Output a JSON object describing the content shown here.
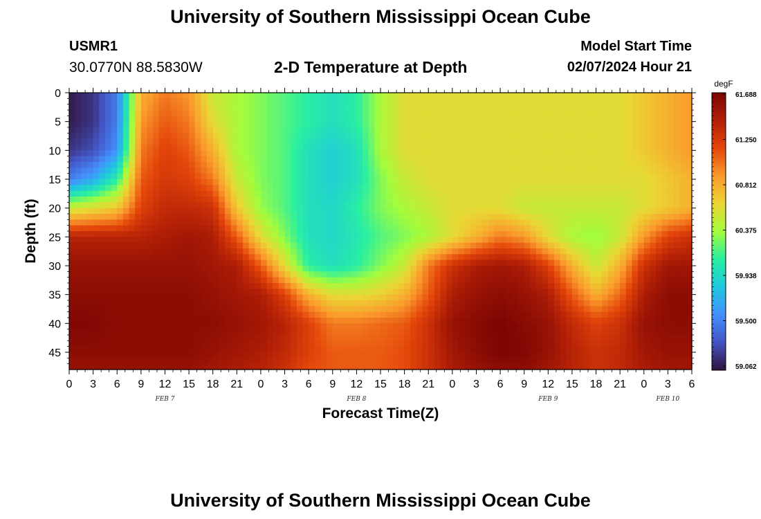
{
  "header": {
    "title": "University of Southern Mississippi Ocean Cube",
    "station_id": "USMR1",
    "station_coords": "30.0770N  88.5830W",
    "subtitle": "2-D Temperature at Depth",
    "model_start_label": "Model Start Time",
    "model_start_value": "02/07/2024 Hour 21"
  },
  "footer": {
    "title": "University of Southern Mississippi Ocean Cube"
  },
  "chart_data": {
    "type": "heatmap",
    "title": "2-D Temperature at Depth",
    "xlabel": "Forecast Time(Z)",
    "ylabel": "Depth (ft)",
    "y_axis_inverted": true,
    "ylim": [
      0,
      48
    ],
    "xlim_hours": [
      0,
      78
    ],
    "x_start": "FEB 7 00Z",
    "x_tick_labels": [
      "0",
      "3",
      "6",
      "9",
      "12",
      "15",
      "18",
      "21",
      "0",
      "3",
      "6",
      "9",
      "12",
      "15",
      "18",
      "21",
      "0",
      "3",
      "6",
      "9",
      "12",
      "15",
      "18",
      "21",
      "0",
      "3",
      "6"
    ],
    "y_tick_labels": [
      "0",
      "5",
      "10",
      "15",
      "20",
      "25",
      "30",
      "35",
      "40",
      "45"
    ],
    "date_labels": [
      {
        "label": "FEB 7",
        "hour": 12
      },
      {
        "label": "FEB 8",
        "hour": 36
      },
      {
        "label": "FEB 9",
        "hour": 60
      },
      {
        "label": "FEB 10",
        "hour": 75
      }
    ],
    "colorbar": {
      "unit": "degF",
      "min": 59.062,
      "max": 61.688,
      "tick_labels": [
        "61.688",
        "61.250",
        "60.812",
        "60.375",
        "59.938",
        "59.500",
        "59.062"
      ],
      "colors": [
        "#30123b",
        "#4454c4",
        "#4490fe",
        "#1fc8de",
        "#29efa2",
        "#a4fc3c",
        "#ebd634",
        "#fa9a2c",
        "#e4460a",
        "#b11f06",
        "#7a0403"
      ]
    },
    "grid_hours": [
      0,
      3,
      6,
      9,
      12,
      15,
      18,
      21,
      24,
      27,
      30,
      33,
      36,
      39,
      42,
      45,
      48,
      51,
      54,
      57,
      60,
      63,
      66,
      69,
      72,
      75,
      78
    ],
    "grid_depths": [
      0,
      5,
      10,
      15,
      20,
      25,
      30,
      35,
      40,
      45,
      48
    ],
    "values_degF": [
      [
        59.1,
        59.2,
        59.5,
        60.8,
        61.0,
        60.9,
        60.5,
        60.4,
        60.3,
        60.2,
        60.1,
        60.0,
        60.1,
        60.4,
        60.6,
        60.6,
        60.6,
        60.6,
        60.6,
        60.6,
        60.6,
        60.6,
        60.6,
        60.6,
        60.7,
        60.8,
        60.9
      ],
      [
        59.1,
        59.2,
        59.5,
        60.9,
        61.1,
        61.0,
        60.6,
        60.4,
        60.3,
        60.2,
        60.1,
        60.0,
        60.1,
        60.4,
        60.6,
        60.6,
        60.6,
        60.6,
        60.6,
        60.6,
        60.6,
        60.6,
        60.6,
        60.6,
        60.7,
        60.8,
        60.9
      ],
      [
        59.2,
        59.3,
        59.6,
        61.0,
        61.2,
        61.1,
        60.8,
        60.4,
        60.3,
        60.2,
        60.0,
        59.9,
        60.0,
        60.4,
        60.6,
        60.6,
        60.6,
        60.6,
        60.6,
        60.6,
        60.6,
        60.6,
        60.6,
        60.6,
        60.7,
        60.8,
        60.9
      ],
      [
        59.5,
        59.7,
        60.1,
        61.1,
        61.25,
        61.2,
        61.0,
        60.5,
        60.3,
        60.2,
        60.0,
        59.9,
        60.0,
        60.3,
        60.5,
        60.6,
        60.6,
        60.6,
        60.6,
        60.6,
        60.6,
        60.6,
        60.6,
        60.6,
        60.6,
        60.7,
        60.8
      ],
      [
        60.5,
        60.6,
        60.7,
        61.2,
        61.35,
        61.35,
        61.3,
        60.7,
        60.35,
        60.2,
        60.0,
        59.95,
        60.1,
        60.3,
        60.4,
        60.5,
        60.6,
        60.6,
        60.6,
        60.5,
        60.5,
        60.5,
        60.5,
        60.5,
        60.6,
        60.7,
        60.8
      ],
      [
        61.4,
        61.4,
        61.4,
        61.4,
        61.45,
        61.5,
        61.45,
        61.1,
        60.6,
        60.3,
        60.0,
        59.95,
        60.05,
        60.2,
        60.3,
        60.4,
        60.6,
        60.8,
        61.0,
        60.9,
        60.6,
        60.4,
        60.35,
        60.5,
        60.9,
        61.2,
        61.3
      ],
      [
        61.55,
        61.55,
        61.55,
        61.55,
        61.55,
        61.55,
        61.5,
        61.45,
        61.1,
        60.6,
        60.1,
        60.0,
        60.1,
        60.3,
        60.5,
        61.0,
        61.3,
        61.45,
        61.5,
        61.45,
        61.2,
        60.8,
        60.5,
        60.8,
        61.3,
        61.5,
        61.5
      ],
      [
        61.6,
        61.6,
        61.6,
        61.6,
        61.6,
        61.6,
        61.55,
        61.5,
        61.45,
        61.2,
        60.8,
        60.6,
        60.6,
        60.65,
        60.8,
        61.1,
        61.45,
        61.55,
        61.6,
        61.55,
        61.45,
        61.1,
        60.8,
        61.05,
        61.45,
        61.6,
        61.6
      ],
      [
        61.65,
        61.65,
        61.6,
        61.6,
        61.6,
        61.6,
        61.6,
        61.55,
        61.5,
        61.4,
        61.2,
        61.0,
        61.0,
        61.05,
        61.1,
        61.3,
        61.55,
        61.62,
        61.68,
        61.62,
        61.55,
        61.35,
        61.2,
        61.3,
        61.55,
        61.6,
        61.6
      ],
      [
        61.6,
        61.6,
        61.6,
        61.6,
        61.6,
        61.6,
        61.55,
        61.5,
        61.45,
        61.35,
        61.2,
        61.1,
        61.1,
        61.1,
        61.15,
        61.3,
        61.5,
        61.6,
        61.68,
        61.65,
        61.55,
        61.4,
        61.3,
        61.35,
        61.5,
        61.55,
        61.55
      ],
      [
        61.55,
        61.55,
        61.55,
        61.55,
        61.55,
        61.55,
        61.5,
        61.45,
        61.4,
        61.3,
        61.15,
        61.1,
        61.1,
        61.1,
        61.15,
        61.3,
        61.45,
        61.55,
        61.6,
        61.6,
        61.5,
        61.4,
        61.3,
        61.35,
        61.45,
        61.5,
        61.5
      ]
    ]
  }
}
